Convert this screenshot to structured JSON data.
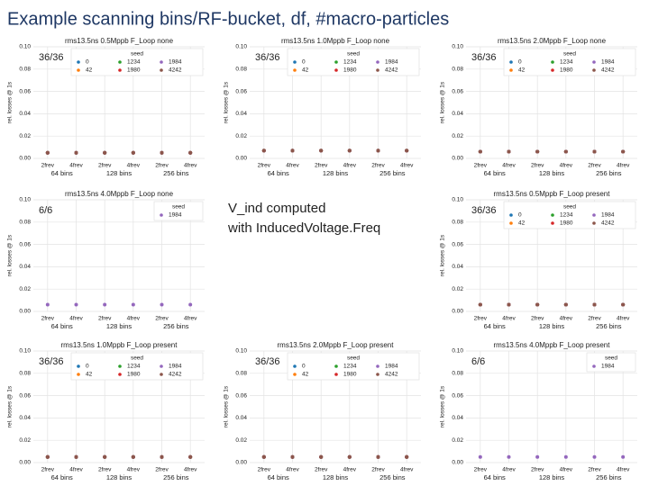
{
  "title": "Example scanning bins/RF-bucket, df, #macro-particles",
  "note": [
    "V_ind computed",
    "with InducedVoltage.Freq"
  ],
  "chart_data": [
    {
      "type": "scatter",
      "title": "rms13.5ns 0.5Mppb F_Loop none",
      "annotation": "36/36",
      "ylabel": "rel. losses @ 1s",
      "legend_title": "seed",
      "categories": [
        "2frev",
        "4frev",
        "2frev",
        "4frev",
        "2frev",
        "4frev"
      ],
      "groups": [
        "64 bins",
        "128 bins",
        "256 bins"
      ],
      "ylim": [
        0,
        0.1
      ],
      "yticks": [
        {
          "value": 0,
          "label": "0.00"
        },
        {
          "value": 0.02,
          "label": "0.02"
        },
        {
          "value": 0.04,
          "label": "0.04"
        },
        {
          "value": 0.06,
          "label": "0.06"
        },
        {
          "value": 0.08,
          "label": "0.08"
        },
        {
          "value": 0.1,
          "label": "0.10"
        }
      ],
      "grid": true,
      "series": [
        {
          "name": "0",
          "color": "#1f77b4",
          "values": [
            0.005,
            0.005,
            0.005,
            0.005,
            0.005,
            0.005
          ]
        },
        {
          "name": "42",
          "color": "#ff7f0e",
          "values": [
            0.005,
            0.005,
            0.005,
            0.005,
            0.005,
            0.005
          ]
        },
        {
          "name": "1234",
          "color": "#2ca02c",
          "values": [
            0.005,
            0.005,
            0.005,
            0.005,
            0.005,
            0.005
          ]
        },
        {
          "name": "1980",
          "color": "#d62728",
          "values": [
            0.005,
            0.005,
            0.005,
            0.005,
            0.005,
            0.005
          ]
        },
        {
          "name": "1984",
          "color": "#9467bd",
          "values": [
            0.005,
            0.005,
            0.005,
            0.005,
            0.005,
            0.005
          ]
        },
        {
          "name": "4242",
          "color": "#8c564b",
          "values": [
            0.005,
            0.005,
            0.005,
            0.005,
            0.005,
            0.005
          ]
        }
      ]
    },
    {
      "type": "scatter",
      "title": "rms13.5ns 1.0Mppb F_Loop none",
      "annotation": "36/36",
      "ylabel": "rel. losses @ 1s",
      "legend_title": "seed",
      "categories": [
        "2frev",
        "4frev",
        "2frev",
        "4frev",
        "2frev",
        "4frev"
      ],
      "groups": [
        "64 bins",
        "128 bins",
        "256 bins"
      ],
      "ylim": [
        0,
        0.1
      ],
      "yticks": [
        {
          "value": 0,
          "label": "0.00"
        },
        {
          "value": 0.02,
          "label": "0.02"
        },
        {
          "value": 0.04,
          "label": "0.04"
        },
        {
          "value": 0.06,
          "label": "0.06"
        },
        {
          "value": 0.08,
          "label": "0.08"
        },
        {
          "value": 0.1,
          "label": "0.10"
        }
      ],
      "grid": true,
      "series": [
        {
          "name": "0",
          "color": "#1f77b4",
          "values": [
            0.007,
            0.007,
            0.007,
            0.007,
            0.007,
            0.007
          ]
        },
        {
          "name": "42",
          "color": "#ff7f0e",
          "values": [
            0.007,
            0.007,
            0.007,
            0.007,
            0.007,
            0.007
          ]
        },
        {
          "name": "1234",
          "color": "#2ca02c",
          "values": [
            0.007,
            0.007,
            0.007,
            0.007,
            0.007,
            0.007
          ]
        },
        {
          "name": "1980",
          "color": "#d62728",
          "values": [
            0.007,
            0.007,
            0.007,
            0.007,
            0.007,
            0.007
          ]
        },
        {
          "name": "1984",
          "color": "#9467bd",
          "values": [
            0.007,
            0.007,
            0.007,
            0.007,
            0.007,
            0.007
          ]
        },
        {
          "name": "4242",
          "color": "#8c564b",
          "values": [
            0.007,
            0.007,
            0.007,
            0.007,
            0.007,
            0.007
          ]
        }
      ]
    },
    {
      "type": "scatter",
      "title": "rms13.5ns 2.0Mppb F_Loop none",
      "annotation": "36/36",
      "ylabel": "rel. losses @ 1s",
      "legend_title": "seed",
      "categories": [
        "2frev",
        "4frev",
        "2frev",
        "4frev",
        "2frev",
        "4frev"
      ],
      "groups": [
        "64 bins",
        "128 bins",
        "256 bins"
      ],
      "ylim": [
        0,
        0.1
      ],
      "yticks": [
        {
          "value": 0,
          "label": "0.00"
        },
        {
          "value": 0.02,
          "label": "0.02"
        },
        {
          "value": 0.04,
          "label": "0.04"
        },
        {
          "value": 0.06,
          "label": "0.06"
        },
        {
          "value": 0.08,
          "label": "0.08"
        },
        {
          "value": 0.1,
          "label": "0.10"
        }
      ],
      "grid": true,
      "series": [
        {
          "name": "0",
          "color": "#1f77b4",
          "values": [
            0.006,
            0.006,
            0.006,
            0.006,
            0.006,
            0.006
          ]
        },
        {
          "name": "42",
          "color": "#ff7f0e",
          "values": [
            0.006,
            0.006,
            0.006,
            0.006,
            0.006,
            0.006
          ]
        },
        {
          "name": "1234",
          "color": "#2ca02c",
          "values": [
            0.006,
            0.006,
            0.006,
            0.006,
            0.006,
            0.006
          ]
        },
        {
          "name": "1980",
          "color": "#d62728",
          "values": [
            0.006,
            0.006,
            0.006,
            0.006,
            0.006,
            0.006
          ]
        },
        {
          "name": "1984",
          "color": "#9467bd",
          "values": [
            0.006,
            0.006,
            0.006,
            0.006,
            0.006,
            0.006
          ]
        },
        {
          "name": "4242",
          "color": "#8c564b",
          "values": [
            0.006,
            0.006,
            0.006,
            0.006,
            0.006,
            0.006
          ]
        }
      ]
    },
    {
      "type": "scatter",
      "title": "rms13.5ns 4.0Mppb F_Loop none",
      "annotation": "6/6",
      "ylabel": "rel. losses @ 1s",
      "legend_title": "seed",
      "categories": [
        "2frev",
        "4frev",
        "2frev",
        "4frev",
        "2frev",
        "4frev"
      ],
      "groups": [
        "64 bins",
        "128 bins",
        "256 bins"
      ],
      "ylim": [
        0,
        0.1
      ],
      "yticks": [
        {
          "value": 0,
          "label": "0.00"
        },
        {
          "value": 0.02,
          "label": "0.02"
        },
        {
          "value": 0.04,
          "label": "0.04"
        },
        {
          "value": 0.06,
          "label": "0.06"
        },
        {
          "value": 0.08,
          "label": "0.08"
        },
        {
          "value": 0.1,
          "label": "0.10"
        }
      ],
      "grid": true,
      "series": [
        {
          "name": "1984",
          "color": "#9467bd",
          "values": [
            0.006,
            0.006,
            0.006,
            0.006,
            0.006,
            0.006
          ]
        }
      ]
    },
    {
      "type": "scatter",
      "title": "rms13.5ns 0.5Mppb F_Loop present",
      "annotation": "36/36",
      "ylabel": "rel. losses @ 1s",
      "legend_title": "seed",
      "categories": [
        "2frev",
        "4frev",
        "2frev",
        "4frev",
        "2frev",
        "4frev"
      ],
      "groups": [
        "64 bins",
        "128 bins",
        "256 bins"
      ],
      "ylim": [
        0,
        0.1
      ],
      "yticks": [
        {
          "value": 0,
          "label": "0.00"
        },
        {
          "value": 0.02,
          "label": "0.02"
        },
        {
          "value": 0.04,
          "label": "0.04"
        },
        {
          "value": 0.06,
          "label": "0.06"
        },
        {
          "value": 0.08,
          "label": "0.08"
        },
        {
          "value": 0.1,
          "label": "0.10"
        }
      ],
      "grid": true,
      "series": [
        {
          "name": "0",
          "color": "#1f77b4",
          "values": [
            0.006,
            0.006,
            0.006,
            0.006,
            0.006,
            0.006
          ]
        },
        {
          "name": "42",
          "color": "#ff7f0e",
          "values": [
            0.006,
            0.006,
            0.006,
            0.006,
            0.006,
            0.006
          ]
        },
        {
          "name": "1234",
          "color": "#2ca02c",
          "values": [
            0.006,
            0.006,
            0.006,
            0.006,
            0.006,
            0.006
          ]
        },
        {
          "name": "1980",
          "color": "#d62728",
          "values": [
            0.006,
            0.006,
            0.006,
            0.006,
            0.006,
            0.006
          ]
        },
        {
          "name": "1984",
          "color": "#9467bd",
          "values": [
            0.006,
            0.006,
            0.006,
            0.006,
            0.006,
            0.006
          ]
        },
        {
          "name": "4242",
          "color": "#8c564b",
          "values": [
            0.006,
            0.006,
            0.006,
            0.006,
            0.006,
            0.006
          ]
        }
      ]
    },
    {
      "type": "scatter",
      "title": "rms13.5ns 1.0Mppb F_Loop present",
      "annotation": "36/36",
      "ylabel": "rel. losses @ 1s",
      "legend_title": "seed",
      "categories": [
        "2frev",
        "4frev",
        "2frev",
        "4frev",
        "2frev",
        "4frev"
      ],
      "groups": [
        "64 bins",
        "128 bins",
        "256 bins"
      ],
      "ylim": [
        0,
        0.1
      ],
      "yticks": [
        {
          "value": 0,
          "label": "0.00"
        },
        {
          "value": 0.02,
          "label": "0.02"
        },
        {
          "value": 0.04,
          "label": "0.04"
        },
        {
          "value": 0.06,
          "label": "0.06"
        },
        {
          "value": 0.08,
          "label": "0.08"
        },
        {
          "value": 0.1,
          "label": "0.10"
        }
      ],
      "grid": true,
      "series": [
        {
          "name": "0",
          "color": "#1f77b4",
          "values": [
            0.005,
            0.005,
            0.005,
            0.005,
            0.005,
            0.005
          ]
        },
        {
          "name": "42",
          "color": "#ff7f0e",
          "values": [
            0.005,
            0.005,
            0.005,
            0.005,
            0.005,
            0.005
          ]
        },
        {
          "name": "1234",
          "color": "#2ca02c",
          "values": [
            0.005,
            0.005,
            0.005,
            0.005,
            0.005,
            0.005
          ]
        },
        {
          "name": "1980",
          "color": "#d62728",
          "values": [
            0.005,
            0.005,
            0.005,
            0.005,
            0.005,
            0.005
          ]
        },
        {
          "name": "1984",
          "color": "#9467bd",
          "values": [
            0.005,
            0.005,
            0.005,
            0.005,
            0.005,
            0.005
          ]
        },
        {
          "name": "4242",
          "color": "#8c564b",
          "values": [
            0.005,
            0.005,
            0.005,
            0.005,
            0.005,
            0.005
          ]
        }
      ]
    },
    {
      "type": "scatter",
      "title": "rms13.5ns 2.0Mppb F_Loop present",
      "annotation": "36/36",
      "ylabel": "rel. losses @ 1s",
      "legend_title": "seed",
      "categories": [
        "2frev",
        "4frev",
        "2frev",
        "4frev",
        "2frev",
        "4frev"
      ],
      "groups": [
        "64 bins",
        "128 bins",
        "256 bins"
      ],
      "ylim": [
        0,
        0.1
      ],
      "yticks": [
        {
          "value": 0,
          "label": "0.00"
        },
        {
          "value": 0.02,
          "label": "0.02"
        },
        {
          "value": 0.04,
          "label": "0.04"
        },
        {
          "value": 0.06,
          "label": "0.06"
        },
        {
          "value": 0.08,
          "label": "0.08"
        },
        {
          "value": 0.1,
          "label": "0.10"
        }
      ],
      "grid": true,
      "series": [
        {
          "name": "0",
          "color": "#1f77b4",
          "values": [
            0.005,
            0.005,
            0.005,
            0.005,
            0.005,
            0.005
          ]
        },
        {
          "name": "42",
          "color": "#ff7f0e",
          "values": [
            0.005,
            0.005,
            0.005,
            0.005,
            0.005,
            0.005
          ]
        },
        {
          "name": "1234",
          "color": "#2ca02c",
          "values": [
            0.005,
            0.005,
            0.005,
            0.005,
            0.005,
            0.005
          ]
        },
        {
          "name": "1980",
          "color": "#d62728",
          "values": [
            0.005,
            0.005,
            0.005,
            0.005,
            0.005,
            0.005
          ]
        },
        {
          "name": "1984",
          "color": "#9467bd",
          "values": [
            0.005,
            0.005,
            0.005,
            0.005,
            0.005,
            0.005
          ]
        },
        {
          "name": "4242",
          "color": "#8c564b",
          "values": [
            0.005,
            0.005,
            0.005,
            0.005,
            0.005,
            0.005
          ]
        }
      ]
    },
    {
      "type": "scatter",
      "title": "rms13.5ns 4.0Mppb F_Loop present",
      "annotation": "6/6",
      "ylabel": "rel. losses @ 1s",
      "legend_title": "seed",
      "categories": [
        "2frev",
        "4frev",
        "2frev",
        "4frev",
        "2frev",
        "4frev"
      ],
      "groups": [
        "64 bins",
        "128 bins",
        "256 bins"
      ],
      "ylim": [
        0,
        0.1
      ],
      "yticks": [
        {
          "value": 0,
          "label": "0.00"
        },
        {
          "value": 0.02,
          "label": "0.02"
        },
        {
          "value": 0.04,
          "label": "0.04"
        },
        {
          "value": 0.06,
          "label": "0.06"
        },
        {
          "value": 0.08,
          "label": "0.08"
        },
        {
          "value": 0.1,
          "label": "0.10"
        }
      ],
      "grid": true,
      "series": [
        {
          "name": "1984",
          "color": "#9467bd",
          "values": [
            0.005,
            0.005,
            0.005,
            0.005,
            0.005,
            0.005
          ]
        }
      ]
    }
  ]
}
